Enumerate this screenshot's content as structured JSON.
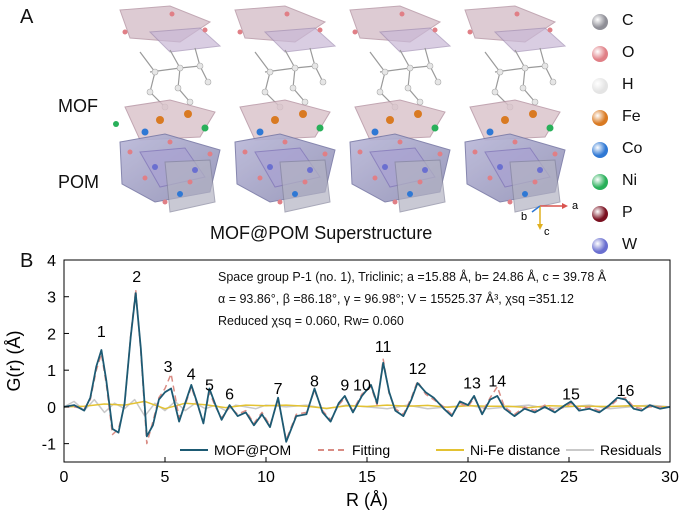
{
  "panel_a": {
    "letter": "A",
    "mof_label": "MOF",
    "pom_label": "POM",
    "caption": "MOF@POM Superstructure",
    "atom_legend": [
      {
        "symbol": "C",
        "color": "#8f8f97"
      },
      {
        "symbol": "O",
        "color": "#e07f86"
      },
      {
        "symbol": "H",
        "color": "#e4e4e4"
      },
      {
        "symbol": "Fe",
        "color": "#d97a22"
      },
      {
        "symbol": "Co",
        "color": "#2f78d4"
      },
      {
        "symbol": "Ni",
        "color": "#29b05a"
      },
      {
        "symbol": "P",
        "color": "#7a1020"
      },
      {
        "symbol": "W",
        "color": "#6a6fd0"
      }
    ],
    "axes": {
      "a": "a",
      "b": "b",
      "c": "c"
    }
  },
  "panel_b": {
    "letter": "B",
    "stats_line1": "Space group P-1 (no. 1), Triclinic; a =15.88 Å, b= 24.86 Å, c = 39.78 Å",
    "stats_line2": "α = 93.86°, β =86.18°, γ = 96.98°; V = 15525.37 Å³, χsq =351.12",
    "stats_line3": "Reduced χsq = 0.060, Rw= 0.060"
  },
  "chart_data": {
    "type": "line",
    "xlabel": "R (Å)",
    "ylabel": "G(r) (Å)",
    "xlim": [
      0,
      30
    ],
    "ylim": [
      -1.5,
      4
    ],
    "x_ticks": [
      0,
      5,
      10,
      15,
      20,
      25,
      30
    ],
    "y_ticks": [
      -1,
      0,
      1,
      2,
      3,
      4
    ],
    "legend_position": "bottom",
    "peak_labels": [
      {
        "text": "1",
        "x": 1.85,
        "y": 1.9
      },
      {
        "text": "2",
        "x": 3.6,
        "y": 3.4
      },
      {
        "text": "3",
        "x": 5.15,
        "y": 0.95
      },
      {
        "text": "4",
        "x": 6.3,
        "y": 0.75
      },
      {
        "text": "5",
        "x": 7.2,
        "y": 0.45
      },
      {
        "text": "6",
        "x": 8.2,
        "y": 0.2
      },
      {
        "text": "7",
        "x": 10.6,
        "y": 0.35
      },
      {
        "text": "8",
        "x": 12.4,
        "y": 0.55
      },
      {
        "text": "9",
        "x": 13.9,
        "y": 0.45
      },
      {
        "text": "10",
        "x": 14.75,
        "y": 0.45
      },
      {
        "text": "11",
        "x": 15.8,
        "y": 1.5
      },
      {
        "text": "12",
        "x": 17.5,
        "y": 0.9
      },
      {
        "text": "13",
        "x": 20.2,
        "y": 0.5
      },
      {
        "text": "14",
        "x": 21.45,
        "y": 0.55
      },
      {
        "text": "15",
        "x": 25.1,
        "y": 0.2
      },
      {
        "text": "16",
        "x": 27.8,
        "y": 0.3
      }
    ],
    "series": [
      {
        "name": "MOF@POM",
        "color": "#1d5a73",
        "style": "solid",
        "x": [
          0,
          0.5,
          1.0,
          1.3,
          1.6,
          1.85,
          2.1,
          2.4,
          2.7,
          3.0,
          3.3,
          3.55,
          3.8,
          4.1,
          4.4,
          4.7,
          5.0,
          5.3,
          5.7,
          6.0,
          6.3,
          6.6,
          6.9,
          7.2,
          7.5,
          7.8,
          8.2,
          8.6,
          9.0,
          9.4,
          9.8,
          10.2,
          10.6,
          11.0,
          11.5,
          12.0,
          12.4,
          12.8,
          13.2,
          13.6,
          13.9,
          14.3,
          14.75,
          15.2,
          15.5,
          15.8,
          16.1,
          16.4,
          16.8,
          17.2,
          17.5,
          17.9,
          18.3,
          18.8,
          19.2,
          19.6,
          20.0,
          20.3,
          20.7,
          21.1,
          21.45,
          21.8,
          22.3,
          22.8,
          23.3,
          23.8,
          24.3,
          24.8,
          25.1,
          25.5,
          26.0,
          26.5,
          27.0,
          27.4,
          27.8,
          28.2,
          28.6,
          29.0,
          29.5,
          30.0
        ],
        "y": [
          0.0,
          0.05,
          -0.1,
          0.25,
          1.1,
          1.55,
          0.7,
          -0.6,
          -0.7,
          0.1,
          1.9,
          3.1,
          1.6,
          -0.8,
          -0.5,
          0.2,
          0.4,
          0.5,
          -0.4,
          0.1,
          0.6,
          0.1,
          -0.45,
          0.5,
          0.05,
          -0.35,
          0.05,
          -0.25,
          -0.15,
          -0.5,
          -0.2,
          -0.55,
          0.25,
          -0.95,
          -0.25,
          -0.2,
          0.5,
          -0.15,
          -0.4,
          0.1,
          0.3,
          -0.15,
          0.3,
          0.6,
          0.1,
          1.2,
          0.4,
          -0.1,
          -0.25,
          0.2,
          0.65,
          0.4,
          0.25,
          -0.05,
          -0.25,
          0.15,
          0.05,
          0.3,
          -0.2,
          0.2,
          0.3,
          -0.05,
          -0.25,
          -0.05,
          -0.15,
          0.0,
          -0.15,
          0.05,
          0.15,
          -0.1,
          -0.05,
          -0.15,
          0.05,
          0.25,
          0.2,
          -0.05,
          -0.1,
          0.05,
          -0.05,
          0.0
        ]
      },
      {
        "name": "Fitting",
        "color": "#d98c84",
        "style": "dash",
        "x": [
          0,
          0.5,
          1.0,
          1.3,
          1.6,
          1.85,
          2.1,
          2.4,
          2.7,
          3.0,
          3.3,
          3.55,
          3.8,
          4.1,
          4.4,
          4.7,
          5.0,
          5.3,
          5.7,
          6.0,
          6.3,
          6.6,
          6.9,
          7.2,
          7.5,
          7.8,
          8.2,
          8.6,
          9.0,
          9.4,
          9.8,
          10.2,
          10.6,
          11.0,
          11.5,
          12.0,
          12.4,
          12.8,
          13.2,
          13.6,
          13.9,
          14.3,
          14.75,
          15.2,
          15.5,
          15.8,
          16.1,
          16.4,
          16.8,
          17.2,
          17.5,
          17.9,
          18.3,
          18.8,
          19.2,
          19.6,
          20.0,
          20.3,
          20.7,
          21.1,
          21.45,
          21.8,
          22.3,
          22.8,
          23.3,
          23.8,
          24.3,
          24.8,
          25.1,
          25.5,
          26.0,
          26.5,
          27.0,
          27.4,
          27.8,
          28.2,
          28.6,
          29.0,
          29.5,
          30.0
        ],
        "y": [
          0.0,
          0.0,
          -0.05,
          0.2,
          1.0,
          1.45,
          0.6,
          -0.75,
          -0.6,
          0.05,
          1.95,
          3.2,
          1.5,
          -1.0,
          -0.4,
          0.25,
          0.5,
          0.9,
          -0.3,
          0.05,
          0.55,
          0.05,
          -0.4,
          0.4,
          0.0,
          -0.3,
          0.0,
          -0.2,
          -0.1,
          -0.45,
          -0.15,
          -0.5,
          0.2,
          -0.9,
          -0.2,
          -0.15,
          0.45,
          -0.1,
          -0.35,
          0.05,
          0.25,
          -0.1,
          0.35,
          0.55,
          0.05,
          1.3,
          0.35,
          -0.05,
          -0.2,
          0.25,
          0.7,
          0.35,
          0.2,
          0.0,
          -0.2,
          0.1,
          0.0,
          0.25,
          -0.15,
          0.25,
          0.55,
          0.0,
          -0.2,
          0.0,
          -0.1,
          0.05,
          -0.1,
          0.0,
          0.1,
          -0.05,
          0.0,
          -0.1,
          0.0,
          0.2,
          0.25,
          0.0,
          -0.05,
          0.0,
          0.0,
          0.0
        ]
      },
      {
        "name": "Ni-Fe distance",
        "color": "#e3c232",
        "style": "solid",
        "x": [
          0,
          1,
          2,
          3,
          4,
          5,
          6,
          7,
          8,
          9,
          10,
          11,
          12,
          13,
          14,
          15,
          16,
          17,
          18,
          19,
          20,
          21,
          22,
          23,
          24,
          25,
          26,
          27,
          28,
          29,
          30
        ],
        "y": [
          0.0,
          0.02,
          0.08,
          0.05,
          0.15,
          -0.05,
          0.1,
          0.06,
          -0.02,
          0.05,
          0.03,
          0.05,
          0.02,
          -0.04,
          0.03,
          0.01,
          0.05,
          0.02,
          0.04,
          -0.01,
          0.03,
          0.02,
          0.02,
          -0.02,
          0.03,
          0.02,
          0.02,
          0.01,
          0.03,
          0.02,
          0.0
        ]
      },
      {
        "name": "Residuals",
        "color": "#c9c9c9",
        "style": "solid",
        "x": [
          0,
          0.5,
          1.0,
          1.5,
          2.0,
          2.5,
          3.0,
          3.5,
          4.0,
          4.5,
          5.0,
          5.5,
          6.0,
          6.5,
          7.0,
          7.5,
          8.0,
          8.5,
          9.0,
          9.5,
          10.0,
          11,
          12,
          13,
          14,
          15,
          16,
          17,
          18,
          19,
          20,
          21,
          22,
          23,
          24,
          25,
          26,
          27,
          28,
          29,
          30
        ],
        "y": [
          0.0,
          0.15,
          -0.1,
          0.2,
          -0.15,
          0.1,
          -0.05,
          0.2,
          -0.25,
          0.1,
          -0.1,
          0.15,
          -0.1,
          0.1,
          -0.05,
          0.05,
          -0.1,
          0.05,
          0.0,
          -0.05,
          0.05,
          0.0,
          0.05,
          -0.05,
          0.05,
          0.0,
          -0.05,
          0.05,
          -0.05,
          0.0,
          0.05,
          -0.05,
          0.0,
          0.05,
          -0.05,
          0.0,
          0.05,
          -0.05,
          0.0,
          0.05,
          0.0
        ]
      }
    ]
  }
}
